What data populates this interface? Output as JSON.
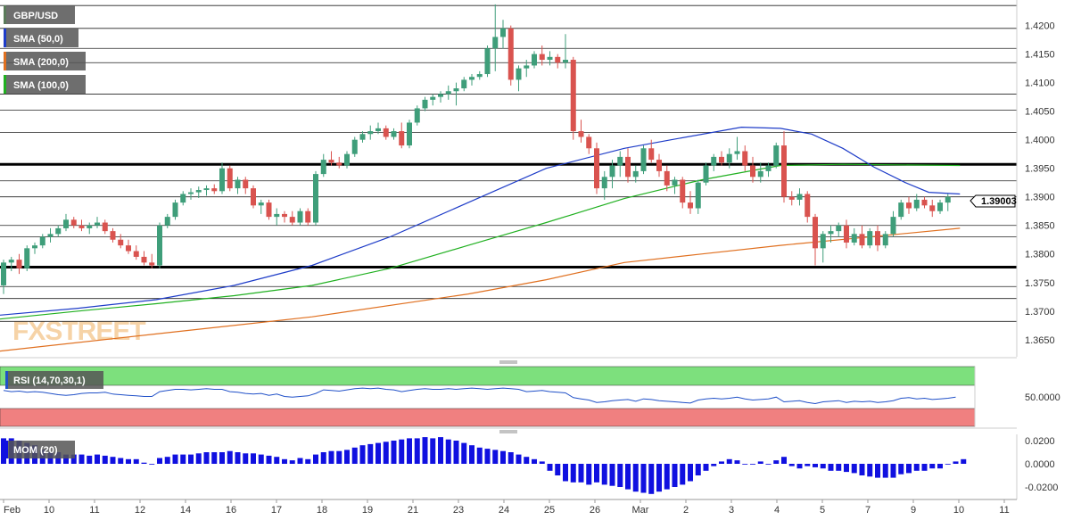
{
  "legend": [
    {
      "label": "GBP/USD",
      "color": "#5a7a5a"
    },
    {
      "label": "SMA (50,0)",
      "color": "#1e3cc8"
    },
    {
      "label": "SMA (200,0)",
      "color": "#e07020"
    },
    {
      "label": "SMA (100,0)",
      "color": "#20b020"
    }
  ],
  "watermark": {
    "fx": "FX",
    "street": "STREET"
  },
  "last_price": "1.39003",
  "rsi_label": "RSI (14,70,30,1)",
  "mom_label": "MOM (20)",
  "colors": {
    "bull": "#3f9e7a",
    "bear": "#d9534f",
    "sma50": "#1e3cc8",
    "sma100": "#20b020",
    "sma200": "#e07020",
    "rsi_line": "#2050c8",
    "mom_bar": "#1010e0",
    "rsi_high": "#7de07d",
    "rsi_low": "#f08080"
  },
  "chart_data": {
    "type": "candlestick",
    "pair": "GBP/USD",
    "x_ticks": [
      "Feb",
      "10",
      "11",
      "12",
      "14",
      "16",
      "17",
      "18",
      "19",
      "21",
      "23",
      "24",
      "25",
      "26",
      "Mar",
      "2",
      "3",
      "4",
      "5",
      "7",
      "9",
      "10",
      "11"
    ],
    "y_ticks": [
      "1.4200",
      "1.4150",
      "1.4100",
      "1.4050",
      "1.4000",
      "1.3950",
      "1.3900",
      "1.3850",
      "1.3800",
      "1.3750",
      "1.3700",
      "1.3650"
    ],
    "ylim": [
      1.362,
      1.424
    ],
    "horizontal_levels": [
      1.4235,
      1.4195,
      1.416,
      1.4135,
      1.408,
      1.4052,
      1.4013,
      1.3928,
      1.39,
      1.385,
      1.383,
      1.3743,
      1.3722,
      1.3682
    ],
    "bold_levels": [
      1.3957,
      1.3777
    ],
    "candles": [
      [
        1.3745,
        1.379,
        1.373,
        1.3785
      ],
      [
        1.3785,
        1.3795,
        1.377,
        1.379
      ],
      [
        1.379,
        1.38,
        1.3765,
        1.3775
      ],
      [
        1.3775,
        1.3815,
        1.377,
        1.381
      ],
      [
        1.381,
        1.382,
        1.38,
        1.3815
      ],
      [
        1.3815,
        1.3835,
        1.381,
        1.383
      ],
      [
        1.383,
        1.3845,
        1.382,
        1.3835
      ],
      [
        1.3835,
        1.385,
        1.383,
        1.3845
      ],
      [
        1.3845,
        1.387,
        1.384,
        1.386
      ],
      [
        1.386,
        1.3865,
        1.3845,
        1.385
      ],
      [
        1.385,
        1.386,
        1.384,
        1.3845
      ],
      [
        1.3845,
        1.3855,
        1.3835,
        1.385
      ],
      [
        1.385,
        1.3865,
        1.3845,
        1.3855
      ],
      [
        1.3855,
        1.386,
        1.3835,
        1.384
      ],
      [
        1.384,
        1.3845,
        1.382,
        1.3825
      ],
      [
        1.3825,
        1.3835,
        1.381,
        1.3815
      ],
      [
        1.3815,
        1.3825,
        1.38,
        1.3805
      ],
      [
        1.3805,
        1.3815,
        1.379,
        1.3795
      ],
      [
        1.3795,
        1.3805,
        1.378,
        1.3785
      ],
      [
        1.3785,
        1.38,
        1.3775,
        1.378
      ],
      [
        1.378,
        1.3855,
        1.3775,
        1.385
      ],
      [
        1.385,
        1.387,
        1.3845,
        1.3865
      ],
      [
        1.3865,
        1.3895,
        1.386,
        1.389
      ],
      [
        1.389,
        1.391,
        1.3885,
        1.3905
      ],
      [
        1.3905,
        1.3915,
        1.3895,
        1.3908
      ],
      [
        1.3908,
        1.3918,
        1.3898,
        1.3912
      ],
      [
        1.3912,
        1.392,
        1.3902,
        1.3915
      ],
      [
        1.3915,
        1.3922,
        1.3905,
        1.391
      ],
      [
        1.391,
        1.396,
        1.3905,
        1.395
      ],
      [
        1.395,
        1.3955,
        1.391,
        1.3915
      ],
      [
        1.3915,
        1.3935,
        1.3905,
        1.393
      ],
      [
        1.393,
        1.3935,
        1.3905,
        1.3915
      ],
      [
        1.3915,
        1.392,
        1.388,
        1.3885
      ],
      [
        1.3885,
        1.3895,
        1.387,
        1.389
      ],
      [
        1.389,
        1.3895,
        1.386,
        1.3865
      ],
      [
        1.3865,
        1.388,
        1.385,
        1.387
      ],
      [
        1.387,
        1.3875,
        1.3855,
        1.3865
      ],
      [
        1.3865,
        1.3875,
        1.385,
        1.3855
      ],
      [
        1.3855,
        1.388,
        1.385,
        1.3875
      ],
      [
        1.3875,
        1.388,
        1.385,
        1.3855
      ],
      [
        1.3855,
        1.3945,
        1.385,
        1.394
      ],
      [
        1.394,
        1.3975,
        1.3935,
        1.3965
      ],
      [
        1.3965,
        1.398,
        1.3955,
        1.396
      ],
      [
        1.396,
        1.397,
        1.395,
        1.3955
      ],
      [
        1.3955,
        1.398,
        1.395,
        1.3975
      ],
      [
        1.3975,
        1.4005,
        1.397,
        1.4
      ],
      [
        1.4,
        1.4015,
        1.3995,
        1.401
      ],
      [
        1.401,
        1.4025,
        1.4,
        1.4015
      ],
      [
        1.4015,
        1.403,
        1.401,
        1.402
      ],
      [
        1.402,
        1.4025,
        1.4,
        1.4005
      ],
      [
        1.4005,
        1.402,
        1.4,
        1.4015
      ],
      [
        1.4015,
        1.403,
        1.3985,
        1.399
      ],
      [
        1.399,
        1.4035,
        1.3985,
        1.403
      ],
      [
        1.403,
        1.406,
        1.4025,
        1.4055
      ],
      [
        1.4055,
        1.4075,
        1.405,
        1.407
      ],
      [
        1.407,
        1.408,
        1.406,
        1.4075
      ],
      [
        1.4075,
        1.4085,
        1.4065,
        1.408
      ],
      [
        1.408,
        1.4095,
        1.407,
        1.4085
      ],
      [
        1.4085,
        1.41,
        1.406,
        1.409
      ],
      [
        1.409,
        1.411,
        1.4085,
        1.4105
      ],
      [
        1.4105,
        1.4115,
        1.4095,
        1.411
      ],
      [
        1.411,
        1.412,
        1.4105,
        1.4115
      ],
      [
        1.4115,
        1.4165,
        1.411,
        1.416
      ],
      [
        1.416,
        1.4237,
        1.412,
        1.418
      ],
      [
        1.418,
        1.421,
        1.416,
        1.4195
      ],
      [
        1.4195,
        1.42,
        1.4095,
        1.4105
      ],
      [
        1.4105,
        1.413,
        1.4085,
        1.4125
      ],
      [
        1.4125,
        1.414,
        1.411,
        1.413
      ],
      [
        1.413,
        1.4155,
        1.4125,
        1.415
      ],
      [
        1.415,
        1.4165,
        1.413,
        1.414
      ],
      [
        1.414,
        1.4155,
        1.413,
        1.4145
      ],
      [
        1.4145,
        1.415,
        1.4125,
        1.4135
      ],
      [
        1.4135,
        1.4185,
        1.4125,
        1.414
      ],
      [
        1.414,
        1.4145,
        1.4,
        1.4015
      ],
      [
        1.4015,
        1.4035,
        1.3995,
        1.4005
      ],
      [
        1.4005,
        1.401,
        1.3975,
        1.3985
      ],
      [
        1.3985,
        1.3995,
        1.3905,
        1.3915
      ],
      [
        1.3915,
        1.3945,
        1.3895,
        1.3935
      ],
      [
        1.3935,
        1.3965,
        1.3915,
        1.3955
      ],
      [
        1.3955,
        1.398,
        1.3935,
        1.397
      ],
      [
        1.397,
        1.3985,
        1.3925,
        1.3935
      ],
      [
        1.3935,
        1.3955,
        1.3925,
        1.3945
      ],
      [
        1.3945,
        1.399,
        1.394,
        1.3985
      ],
      [
        1.3985,
        1.4,
        1.396,
        1.3965
      ],
      [
        1.3965,
        1.3975,
        1.3935,
        1.3945
      ],
      [
        1.3945,
        1.3955,
        1.391,
        1.392
      ],
      [
        1.392,
        1.3935,
        1.3905,
        1.393
      ],
      [
        1.393,
        1.3935,
        1.388,
        1.389
      ],
      [
        1.389,
        1.391,
        1.387,
        1.388
      ],
      [
        1.388,
        1.393,
        1.387,
        1.3925
      ],
      [
        1.3925,
        1.396,
        1.392,
        1.3955
      ],
      [
        1.3955,
        1.3975,
        1.3945,
        1.397
      ],
      [
        1.397,
        1.398,
        1.3955,
        1.396
      ],
      [
        1.396,
        1.3985,
        1.395,
        1.3975
      ],
      [
        1.3975,
        1.4005,
        1.3965,
        1.398
      ],
      [
        1.398,
        1.399,
        1.3945,
        1.3955
      ],
      [
        1.3955,
        1.397,
        1.3925,
        1.3935
      ],
      [
        1.3935,
        1.396,
        1.3925,
        1.3945
      ],
      [
        1.3945,
        1.396,
        1.3935,
        1.3955
      ],
      [
        1.3955,
        1.3995,
        1.395,
        1.399
      ],
      [
        1.399,
        1.4015,
        1.389,
        1.39
      ],
      [
        1.39,
        1.391,
        1.3885,
        1.3895
      ],
      [
        1.3895,
        1.3915,
        1.3885,
        1.3905
      ],
      [
        1.3905,
        1.391,
        1.3855,
        1.3865
      ],
      [
        1.3865,
        1.387,
        1.378,
        1.381
      ],
      [
        1.381,
        1.384,
        1.3785,
        1.3835
      ],
      [
        1.3835,
        1.385,
        1.382,
        1.384
      ],
      [
        1.384,
        1.3855,
        1.383,
        1.385
      ],
      [
        1.385,
        1.386,
        1.381,
        1.382
      ],
      [
        1.382,
        1.3845,
        1.3815,
        1.3835
      ],
      [
        1.3835,
        1.385,
        1.381,
        1.3815
      ],
      [
        1.3815,
        1.3845,
        1.381,
        1.384
      ],
      [
        1.384,
        1.385,
        1.3805,
        1.3815
      ],
      [
        1.3815,
        1.384,
        1.381,
        1.3835
      ],
      [
        1.3835,
        1.3875,
        1.383,
        1.3865
      ],
      [
        1.3865,
        1.3895,
        1.386,
        1.389
      ],
      [
        1.389,
        1.39,
        1.387,
        1.388
      ],
      [
        1.388,
        1.3905,
        1.3875,
        1.3895
      ],
      [
        1.3895,
        1.39,
        1.388,
        1.3885
      ],
      [
        1.3885,
        1.3895,
        1.3865,
        1.3875
      ],
      [
        1.3875,
        1.3895,
        1.387,
        1.389
      ],
      [
        1.389,
        1.3905,
        1.3875,
        1.39
      ]
    ],
    "sma50": [
      [
        0,
        1.3693
      ],
      [
        10,
        1.3705
      ],
      [
        20,
        1.372
      ],
      [
        30,
        1.3745
      ],
      [
        40,
        1.378
      ],
      [
        50,
        1.383
      ],
      [
        60,
        1.389
      ],
      [
        70,
        1.395
      ],
      [
        80,
        1.3985
      ],
      [
        86,
        1.4
      ],
      [
        95,
        1.4022
      ],
      [
        100,
        1.402
      ],
      [
        104,
        1.401
      ],
      [
        108,
        1.3985
      ],
      [
        112,
        1.3952
      ],
      [
        116,
        1.3925
      ],
      [
        119,
        1.3908
      ],
      [
        123,
        1.3905
      ]
    ],
    "sma100": [
      [
        0,
        1.3686
      ],
      [
        10,
        1.37
      ],
      [
        20,
        1.3713
      ],
      [
        30,
        1.3727
      ],
      [
        40,
        1.3745
      ],
      [
        50,
        1.3775
      ],
      [
        60,
        1.3815
      ],
      [
        70,
        1.3855
      ],
      [
        80,
        1.3897
      ],
      [
        86,
        1.3917
      ],
      [
        90,
        1.393
      ],
      [
        96,
        1.3945
      ],
      [
        100,
        1.3955
      ],
      [
        108,
        1.3957
      ],
      [
        123,
        1.3955
      ]
    ],
    "sma200": [
      [
        0,
        1.363
      ],
      [
        20,
        1.366
      ],
      [
        40,
        1.369
      ],
      [
        60,
        1.373
      ],
      [
        70,
        1.3755
      ],
      [
        80,
        1.3785
      ],
      [
        90,
        1.38
      ],
      [
        100,
        1.3815
      ],
      [
        110,
        1.3828
      ],
      [
        123,
        1.3845
      ]
    ],
    "rsi_ylabel": "50.0000",
    "rsi": [
      60,
      58,
      59,
      57,
      58,
      57,
      55,
      53,
      52,
      53,
      55,
      56,
      56,
      57,
      54,
      53,
      52,
      51,
      50,
      50,
      58,
      60,
      62,
      62,
      61,
      62,
      63,
      62,
      62,
      58,
      57,
      55,
      54,
      55,
      52,
      54,
      50,
      49,
      50,
      51,
      55,
      61,
      60,
      59,
      61,
      63,
      64,
      63,
      64,
      62,
      61,
      58,
      60,
      62,
      63,
      62,
      62,
      63,
      62,
      63,
      64,
      63,
      62,
      63,
      64,
      63,
      62,
      58,
      59,
      60,
      58,
      57,
      56,
      48,
      46,
      44,
      40,
      41,
      43,
      44,
      45,
      42,
      46,
      45,
      43,
      42,
      41,
      40,
      39,
      44,
      46,
      47,
      46,
      47,
      49,
      46,
      44,
      45,
      46,
      49,
      41,
      42,
      43,
      40,
      38,
      41,
      42,
      43,
      40,
      42,
      41,
      42,
      40,
      41,
      43,
      47,
      48,
      46,
      47,
      45,
      46,
      47,
      49
    ],
    "mom_yticks": [
      "0.0200",
      "0.0000",
      "-0.0200"
    ],
    "mom": [
      0.022,
      0.022,
      0.02,
      0.018,
      0.016,
      0.012,
      0.01,
      0.01,
      0.008,
      0.008,
      0.008,
      0.007,
      0.008,
      0.007,
      0.006,
      0.005,
      0.004,
      0.004,
      0.001,
      0.0,
      0.005,
      0.006,
      0.008,
      0.008,
      0.008,
      0.009,
      0.01,
      0.01,
      0.01,
      0.011,
      0.01,
      0.009,
      0.009,
      0.008,
      0.007,
      0.006,
      0.004,
      0.003,
      0.005,
      0.004,
      0.008,
      0.01,
      0.011,
      0.011,
      0.012,
      0.014,
      0.016,
      0.017,
      0.018,
      0.019,
      0.02,
      0.021,
      0.022,
      0.022,
      0.023,
      0.022,
      0.023,
      0.021,
      0.02,
      0.018,
      0.016,
      0.014,
      0.013,
      0.012,
      0.011,
      0.01,
      0.008,
      0.006,
      0.004,
      0.002,
      -0.006,
      -0.01,
      -0.015,
      -0.016,
      -0.016,
      -0.018,
      -0.016,
      -0.018,
      -0.019,
      -0.02,
      -0.022,
      -0.024,
      -0.025,
      -0.026,
      -0.024,
      -0.022,
      -0.02,
      -0.018,
      -0.015,
      -0.01,
      -0.006,
      -0.002,
      0.002,
      0.004,
      0.003,
      0.0,
      0.0,
      0.002,
      0.0,
      0.003,
      0.006,
      -0.002,
      -0.004,
      -0.002,
      -0.003,
      -0.004,
      -0.006,
      -0.006,
      -0.007,
      -0.008,
      -0.01,
      -0.011,
      -0.012,
      -0.012,
      -0.012,
      -0.009,
      -0.008,
      -0.006,
      -0.006,
      -0.004,
      -0.004,
      0.0,
      0.002,
      0.004
    ]
  }
}
